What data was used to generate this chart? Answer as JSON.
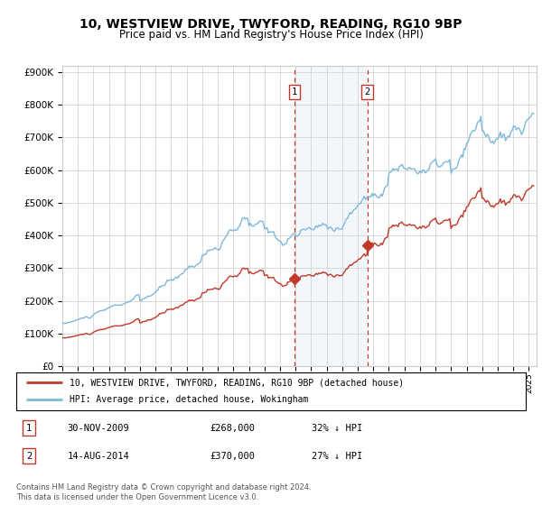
{
  "title": "10, WESTVIEW DRIVE, TWYFORD, READING, RG10 9BP",
  "subtitle": "Price paid vs. HM Land Registry's House Price Index (HPI)",
  "title_fontsize": 10,
  "subtitle_fontsize": 8.5,
  "ylabel_ticks": [
    "£0",
    "£100K",
    "£200K",
    "£300K",
    "£400K",
    "£500K",
    "£600K",
    "£700K",
    "£800K",
    "£900K"
  ],
  "ytick_values": [
    0,
    100000,
    200000,
    300000,
    400000,
    500000,
    600000,
    700000,
    800000,
    900000
  ],
  "ylim": [
    0,
    920000
  ],
  "xlim_start": 1995.0,
  "xlim_end": 2025.5,
  "purchase1_date": 2009.92,
  "purchase1_price": 268000,
  "purchase1_label": "1",
  "purchase2_date": 2014.62,
  "purchase2_price": 370000,
  "purchase2_label": "2",
  "legend_line1": "10, WESTVIEW DRIVE, TWYFORD, READING, RG10 9BP (detached house)",
  "legend_line2": "HPI: Average price, detached house, Wokingham",
  "table_row1": [
    "1",
    "30-NOV-2009",
    "£268,000",
    "32% ↓ HPI"
  ],
  "table_row2": [
    "2",
    "14-AUG-2014",
    "£370,000",
    "27% ↓ HPI"
  ],
  "footer": "Contains HM Land Registry data © Crown copyright and database right 2024.\nThis data is licensed under the Open Government Licence v3.0.",
  "hpi_color": "#7fb9d9",
  "price_color": "#c0392b",
  "vline_color": "#c0392b",
  "shade_color": "#daeaf5",
  "background_color": "#ffffff",
  "grid_color": "#cccccc"
}
